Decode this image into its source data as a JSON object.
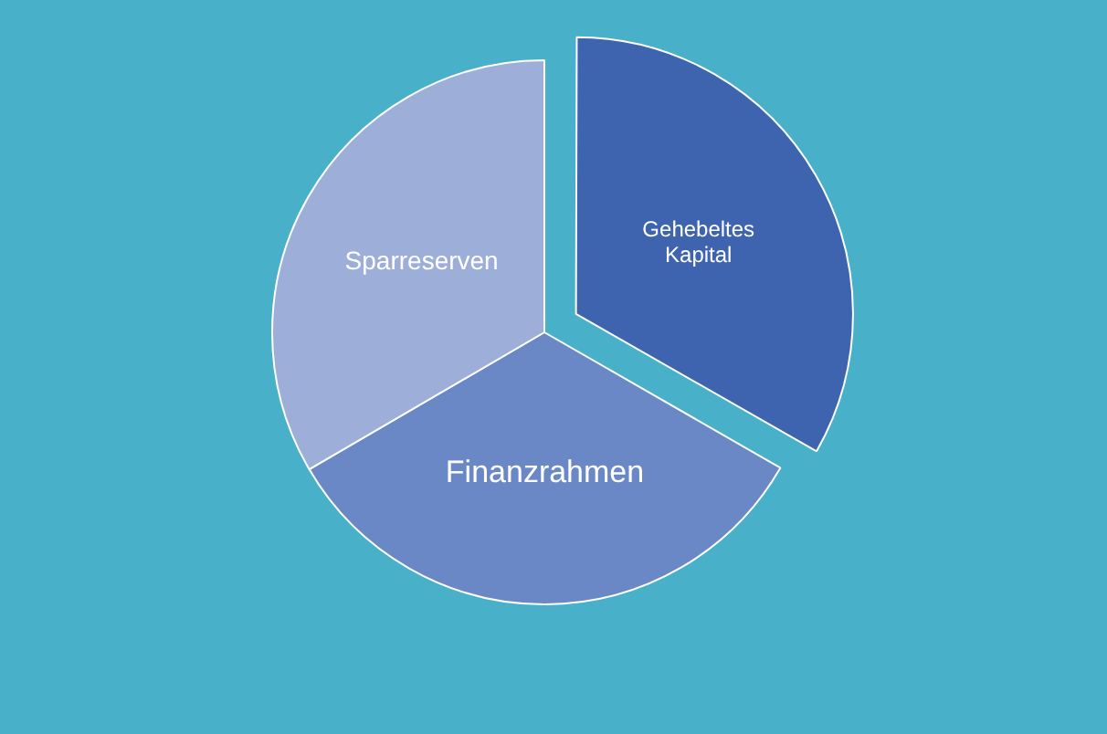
{
  "chart_data": {
    "type": "pie",
    "categories": [
      "Gehebeltes Kapital",
      "Finanzrahmen",
      "Sparreserven"
    ],
    "values": [
      33.3,
      33.3,
      33.4
    ],
    "colors": [
      "#3e64af",
      "#6a88c6",
      "#9daed9"
    ],
    "legend": false
  }
}
